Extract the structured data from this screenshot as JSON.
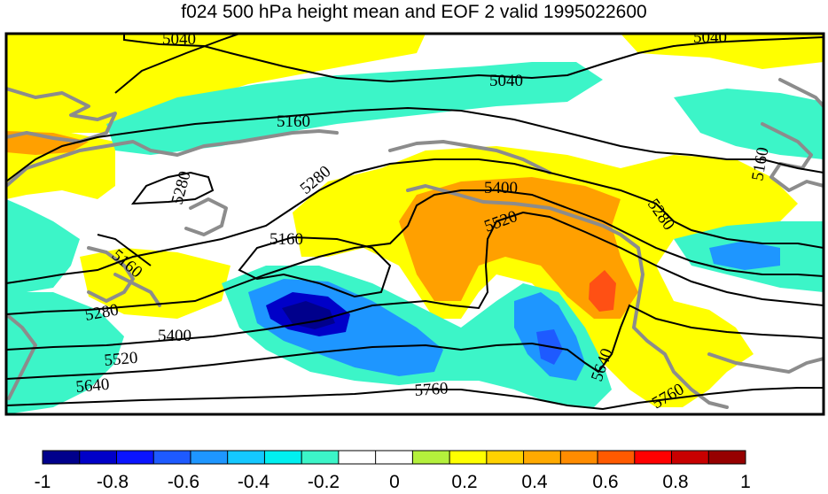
{
  "title": "f024 500 hPa height mean and EOF 2 valid 1995022600",
  "contour_labels": [
    "5040",
    "5040",
    "5040",
    "5160",
    "5160",
    "5160",
    "5160",
    "5280",
    "5280",
    "5280",
    "5280",
    "5400",
    "5400",
    "5520",
    "5520",
    "5640",
    "5640",
    "5760",
    "5760"
  ],
  "colorbar": {
    "tick_labels": [
      "-1",
      "-0.8",
      "-0.6",
      "-0.4",
      "-0.2",
      "0",
      "0.2",
      "0.4",
      "0.6",
      "0.8",
      "1"
    ],
    "colors": [
      "#00008c",
      "#0000c8",
      "#0a14ff",
      "#1e5aff",
      "#1e96ff",
      "#14c8ff",
      "#00f0f0",
      "#3cf5c8",
      "#ffffff",
      "#ffffff",
      "#b4f03c",
      "#ffff00",
      "#ffd200",
      "#ffaa00",
      "#ff8c00",
      "#ff5a00",
      "#ff0000",
      "#c80000",
      "#960000"
    ]
  },
  "colors": {
    "positive_light": "#ffff00",
    "positive_mid": "#ffa000",
    "positive_strong": "#ff5014",
    "negative_light": "#3cf5c8",
    "negative_mid": "#1e96ff",
    "negative_strong": "#0000c8",
    "coastline": "#8c8c8c",
    "contour": "#000000"
  }
}
